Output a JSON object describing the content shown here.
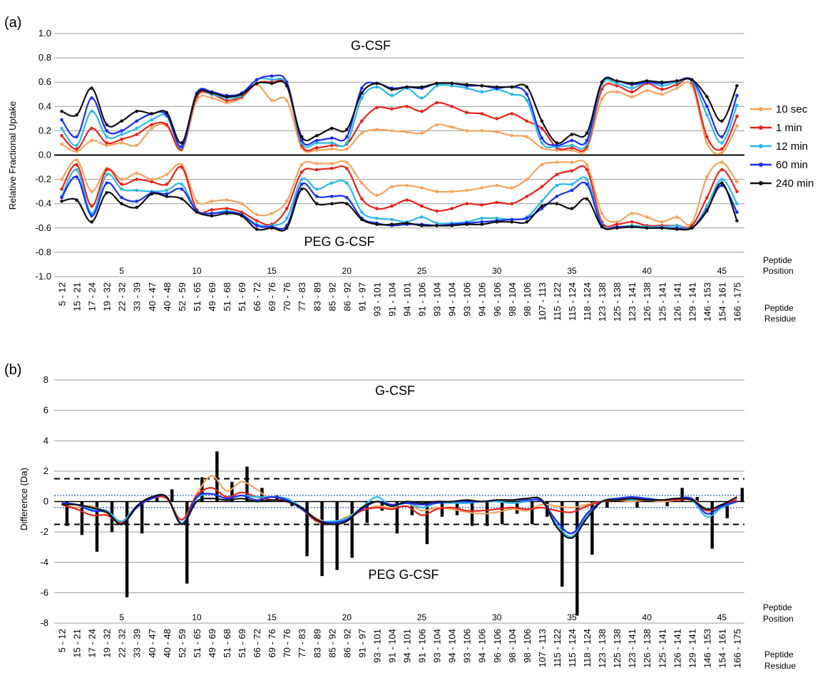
{
  "panel_a_label": "(a)",
  "panel_b_label": "(b)",
  "side_labels": {
    "position": [
      "Peptide",
      "Position"
    ],
    "residue": [
      "Peptide",
      "Residue"
    ]
  },
  "chart_data": [
    {
      "type": "line",
      "panel": "(a)",
      "title_top": "G-CSF",
      "title_bottom": "PEG G-CSF",
      "xlabel": "",
      "ylabel": "Relative Fractional Uptake",
      "ylim": [
        -1.0,
        1.0
      ],
      "yticks": [
        "1.0",
        "0.8",
        "0.6",
        "0.4",
        "0.2",
        "0.0",
        "-0.2",
        "-0.4",
        "-0.6",
        "-0.8",
        "-1.0"
      ],
      "categories": [
        "5 - 12",
        "15 - 21",
        "17 - 24",
        "19 - 32",
        "22 - 32",
        "33 - 39",
        "40 - 47",
        "40 - 48",
        "52 - 59",
        "51 - 65",
        "49 - 69",
        "51 - 68",
        "51 - 69",
        "66 - 72",
        "69 - 76",
        "70 - 76",
        "77 - 83",
        "83 - 89",
        "85 - 92",
        "86 - 92",
        "91 - 97",
        "93 - 101",
        "91 - 104",
        "94 - 101",
        "91 - 106",
        "93 - 104",
        "94 - 104",
        "93 - 106",
        "94 - 106",
        "96 - 106",
        "98 - 104",
        "98 - 106",
        "107 - 113",
        "115 - 122",
        "115 - 124",
        "118 - 124",
        "123 - 138",
        "125 - 138",
        "123 - 141",
        "126 - 138",
        "125 - 141",
        "126 - 141",
        "129 - 141",
        "146 - 153",
        "154 - 161",
        "166 - 175"
      ],
      "position_ticks": [
        "5",
        "10",
        "15",
        "20",
        "25",
        "30",
        "35",
        "40",
        "45"
      ],
      "grid": true,
      "legend": "right",
      "series": [
        {
          "name": "10 sec",
          "color": "#f4a460",
          "top": [
            0.09,
            0.03,
            0.12,
            0.08,
            0.1,
            0.08,
            0.22,
            0.24,
            0.04,
            0.45,
            0.47,
            0.43,
            0.47,
            0.58,
            0.45,
            0.45,
            0.06,
            0.04,
            0.05,
            0.05,
            0.18,
            0.21,
            0.2,
            0.19,
            0.18,
            0.25,
            0.23,
            0.2,
            0.2,
            0.19,
            0.16,
            0.15,
            0.06,
            0.04,
            0.04,
            0.05,
            0.46,
            0.52,
            0.48,
            0.53,
            0.5,
            0.55,
            0.57,
            0.1,
            0.02,
            0.24
          ],
          "bottom": [
            -0.2,
            -0.04,
            -0.3,
            -0.11,
            -0.2,
            -0.15,
            -0.2,
            -0.16,
            -0.08,
            -0.38,
            -0.38,
            -0.37,
            -0.4,
            -0.49,
            -0.48,
            -0.38,
            -0.08,
            -0.07,
            -0.07,
            -0.06,
            -0.23,
            -0.33,
            -0.26,
            -0.25,
            -0.27,
            -0.3,
            -0.3,
            -0.29,
            -0.27,
            -0.25,
            -0.27,
            -0.2,
            -0.08,
            -0.06,
            -0.06,
            -0.08,
            -0.48,
            -0.55,
            -0.48,
            -0.51,
            -0.55,
            -0.51,
            -0.56,
            -0.18,
            -0.06,
            -0.22
          ]
        },
        {
          "name": "1 min",
          "color": "#e8231c",
          "top": [
            0.16,
            0.05,
            0.22,
            0.1,
            0.13,
            0.17,
            0.25,
            0.25,
            0.05,
            0.48,
            0.5,
            0.45,
            0.48,
            0.59,
            0.6,
            0.57,
            0.08,
            0.06,
            0.08,
            0.09,
            0.28,
            0.39,
            0.38,
            0.4,
            0.36,
            0.43,
            0.4,
            0.35,
            0.34,
            0.3,
            0.34,
            0.28,
            0.22,
            0.06,
            0.06,
            0.07,
            0.54,
            0.57,
            0.52,
            0.59,
            0.54,
            0.58,
            0.6,
            0.15,
            0.05,
            0.32
          ],
          "bottom": [
            -0.28,
            -0.08,
            -0.42,
            -0.12,
            -0.24,
            -0.2,
            -0.22,
            -0.24,
            -0.1,
            -0.45,
            -0.45,
            -0.44,
            -0.47,
            -0.54,
            -0.57,
            -0.44,
            -0.14,
            -0.12,
            -0.11,
            -0.11,
            -0.36,
            -0.44,
            -0.42,
            -0.37,
            -0.42,
            -0.46,
            -0.44,
            -0.4,
            -0.41,
            -0.39,
            -0.4,
            -0.34,
            -0.26,
            -0.16,
            -0.13,
            -0.12,
            -0.55,
            -0.57,
            -0.55,
            -0.58,
            -0.58,
            -0.58,
            -0.58,
            -0.35,
            -0.12,
            -0.3
          ]
        },
        {
          "name": "12 min",
          "color": "#2cb8e6",
          "top": [
            0.22,
            0.08,
            0.36,
            0.15,
            0.17,
            0.22,
            0.29,
            0.32,
            0.06,
            0.5,
            0.5,
            0.47,
            0.49,
            0.62,
            0.62,
            0.58,
            0.1,
            0.1,
            0.1,
            0.1,
            0.47,
            0.56,
            0.49,
            0.55,
            0.47,
            0.57,
            0.57,
            0.55,
            0.52,
            0.54,
            0.5,
            0.45,
            0.1,
            0.07,
            0.08,
            0.09,
            0.58,
            0.59,
            0.55,
            0.6,
            0.57,
            0.6,
            0.61,
            0.33,
            0.1,
            0.41
          ],
          "bottom": [
            -0.34,
            -0.12,
            -0.48,
            -0.16,
            -0.28,
            -0.29,
            -0.3,
            -0.29,
            -0.24,
            -0.46,
            -0.48,
            -0.46,
            -0.49,
            -0.57,
            -0.58,
            -0.52,
            -0.2,
            -0.28,
            -0.23,
            -0.23,
            -0.47,
            -0.52,
            -0.53,
            -0.55,
            -0.51,
            -0.56,
            -0.56,
            -0.55,
            -0.52,
            -0.52,
            -0.53,
            -0.51,
            -0.38,
            -0.25,
            -0.24,
            -0.2,
            -0.57,
            -0.59,
            -0.58,
            -0.59,
            -0.59,
            -0.58,
            -0.6,
            -0.42,
            -0.2,
            -0.4
          ]
        },
        {
          "name": "60 min",
          "color": "#1c2ef0",
          "top": [
            0.29,
            0.15,
            0.47,
            0.2,
            0.2,
            0.28,
            0.34,
            0.33,
            0.07,
            0.51,
            0.52,
            0.49,
            0.51,
            0.62,
            0.65,
            0.6,
            0.12,
            0.12,
            0.14,
            0.15,
            0.55,
            0.59,
            0.55,
            0.56,
            0.55,
            0.59,
            0.59,
            0.57,
            0.57,
            0.55,
            0.56,
            0.5,
            0.14,
            0.08,
            0.12,
            0.12,
            0.6,
            0.61,
            0.58,
            0.6,
            0.59,
            0.61,
            0.62,
            0.4,
            0.15,
            0.49
          ],
          "bottom": [
            -0.35,
            -0.18,
            -0.5,
            -0.23,
            -0.35,
            -0.38,
            -0.31,
            -0.32,
            -0.28,
            -0.46,
            -0.48,
            -0.47,
            -0.49,
            -0.58,
            -0.59,
            -0.58,
            -0.24,
            -0.34,
            -0.34,
            -0.35,
            -0.52,
            -0.56,
            -0.58,
            -0.57,
            -0.57,
            -0.58,
            -0.57,
            -0.56,
            -0.55,
            -0.54,
            -0.53,
            -0.52,
            -0.44,
            -0.34,
            -0.29,
            -0.24,
            -0.58,
            -0.59,
            -0.59,
            -0.6,
            -0.6,
            -0.6,
            -0.6,
            -0.45,
            -0.25,
            -0.47
          ]
        },
        {
          "name": "240 min",
          "color": "#111111",
          "top": [
            0.36,
            0.33,
            0.55,
            0.25,
            0.28,
            0.36,
            0.34,
            0.35,
            0.1,
            0.5,
            0.51,
            0.48,
            0.5,
            0.59,
            0.59,
            0.57,
            0.15,
            0.16,
            0.22,
            0.21,
            0.51,
            0.59,
            0.54,
            0.56,
            0.56,
            0.59,
            0.59,
            0.58,
            0.57,
            0.56,
            0.56,
            0.56,
            0.28,
            0.1,
            0.17,
            0.18,
            0.6,
            0.61,
            0.59,
            0.61,
            0.6,
            0.61,
            0.62,
            0.48,
            0.28,
            0.57
          ],
          "bottom": [
            -0.38,
            -0.37,
            -0.55,
            -0.31,
            -0.4,
            -0.43,
            -0.32,
            -0.34,
            -0.36,
            -0.47,
            -0.5,
            -0.48,
            -0.5,
            -0.61,
            -0.6,
            -0.6,
            -0.28,
            -0.4,
            -0.4,
            -0.4,
            -0.53,
            -0.57,
            -0.57,
            -0.56,
            -0.58,
            -0.58,
            -0.58,
            -0.57,
            -0.57,
            -0.55,
            -0.55,
            -0.55,
            -0.42,
            -0.4,
            -0.44,
            -0.36,
            -0.59,
            -0.6,
            -0.59,
            -0.6,
            -0.6,
            -0.61,
            -0.6,
            -0.46,
            -0.23,
            -0.54
          ]
        }
      ]
    },
    {
      "type": "line",
      "panel": "(b)",
      "title_top": "G-CSF",
      "title_bottom": "PEG G-CSF",
      "xlabel": "",
      "ylabel": "Difference (Da)",
      "ylim": [
        -8,
        8
      ],
      "yticks": [
        "8",
        "6",
        "4",
        "2",
        "0",
        "-2",
        "-4",
        "-6",
        "-8"
      ],
      "categories": [
        "5 - 12",
        "15 - 21",
        "17 - 24",
        "19 - 32",
        "22 - 32",
        "33 - 39",
        "40 - 47",
        "40 - 48",
        "52 - 59",
        "51 - 65",
        "49 - 69",
        "51 - 68",
        "51 - 69",
        "66 - 72",
        "69 - 76",
        "70 - 76",
        "77 - 83",
        "83 - 89",
        "85 - 92",
        "86 - 92",
        "91 - 97",
        "93 - 101",
        "91 - 104",
        "94 - 101",
        "91 - 106",
        "93 - 104",
        "94 - 104",
        "93 - 106",
        "94 - 106",
        "96 - 106",
        "98 - 104",
        "98 - 106",
        "107 - 113",
        "115 - 122",
        "115 - 124",
        "118 - 124",
        "123 - 138",
        "125 - 138",
        "123 - 141",
        "126 - 138",
        "125 - 141",
        "126 - 141",
        "129 - 141",
        "146 - 153",
        "154 - 161",
        "166 - 175"
      ],
      "position_ticks": [
        "5",
        "10",
        "15",
        "20",
        "25",
        "30",
        "35",
        "40",
        "45"
      ],
      "threshold_dashed": [
        1.5,
        -1.5
      ],
      "threshold_dotted": [
        0.4,
        -0.4
      ],
      "bars": [
        -1.6,
        -2.2,
        -3.3,
        -2.0,
        -6.3,
        -2.1,
        0.4,
        0.8,
        -5.4,
        1.6,
        3.3,
        1.3,
        2.3,
        0.9,
        0.4,
        -0.3,
        -3.6,
        -4.9,
        -4.5,
        -3.7,
        -1.4,
        -0.6,
        -2.1,
        -0.9,
        -2.8,
        -1.0,
        -0.9,
        -1.6,
        -1.6,
        -1.5,
        -0.8,
        -1.5,
        -1.0,
        -5.6,
        -7.5,
        -3.5,
        -0.4,
        0.2,
        -0.4,
        0.2,
        -0.3,
        0.9,
        0.3,
        -3.1,
        -1.1,
        0.9
      ],
      "series": [
        {
          "name": "10 sec",
          "color": "#f4a460",
          "values": [
            -0.2,
            -0.4,
            -0.3,
            -0.8,
            -1.3,
            -0.3,
            0.2,
            0.3,
            -1.2,
            0.5,
            1.7,
            0.7,
            1.3,
            0.8,
            0.1,
            0.1,
            -0.5,
            -1.1,
            -1.4,
            -1.0,
            -0.6,
            -0.3,
            -0.4,
            -0.1,
            -0.6,
            -0.4,
            -0.5,
            -0.7,
            -0.8,
            -0.7,
            -0.5,
            -0.6,
            -0.2,
            -0.3,
            -0.4,
            -0.2,
            0.0,
            0.1,
            0.0,
            0.1,
            0.0,
            0.1,
            0.2,
            -0.5,
            -0.3,
            0.2
          ]
        },
        {
          "name": "1 min",
          "color": "#e8231c",
          "values": [
            -0.2,
            -0.5,
            -0.9,
            -0.9,
            -1.4,
            -0.4,
            0.2,
            0.2,
            -1.2,
            0.4,
            0.9,
            0.3,
            0.6,
            0.3,
            0.1,
            0.1,
            -0.5,
            -1.3,
            -1.4,
            -1.2,
            -0.6,
            -0.4,
            -0.5,
            -0.3,
            -0.9,
            -0.5,
            -0.4,
            -0.6,
            -0.6,
            -0.5,
            -0.4,
            -0.5,
            -0.4,
            -0.6,
            -0.7,
            -0.3,
            0.0,
            0.1,
            0.1,
            0.1,
            0.1,
            0.1,
            0.1,
            -0.6,
            -0.2,
            0.1
          ]
        },
        {
          "name": "12 min",
          "color": "#2cb8e6",
          "values": [
            -0.1,
            -0.2,
            -0.5,
            -0.6,
            -1.3,
            -0.3,
            0.3,
            0.3,
            -1.4,
            0.2,
            0.5,
            0.2,
            0.4,
            0.3,
            0.3,
            0.2,
            -0.4,
            -1.2,
            -1.3,
            -1.1,
            -0.4,
            0.3,
            -0.3,
            -0.1,
            -0.4,
            -0.1,
            -0.1,
            -0.1,
            0.0,
            0.0,
            -0.1,
            0.0,
            0.1,
            -1.5,
            -2.3,
            -0.9,
            0.0,
            0.2,
            0.1,
            0.2,
            0.1,
            0.2,
            0.1,
            -1.0,
            -0.4,
            0.0
          ]
        },
        {
          "name": "60 min",
          "color": "#1c2ef0",
          "values": [
            -0.1,
            -0.2,
            -0.6,
            -0.7,
            -1.5,
            -0.4,
            0.2,
            0.3,
            -1.5,
            0.3,
            0.5,
            0.2,
            0.4,
            0.1,
            0.3,
            0.1,
            -0.5,
            -1.2,
            -1.4,
            -1.2,
            -0.5,
            0.0,
            -0.2,
            -0.1,
            -0.2,
            -0.1,
            0.0,
            0.0,
            0.0,
            0.1,
            0.1,
            0.1,
            0.0,
            -1.3,
            -2.1,
            -0.8,
            0.0,
            0.2,
            0.3,
            0.2,
            0.1,
            0.2,
            0.2,
            -0.8,
            -0.3,
            0.0
          ]
        },
        {
          "name": "240 min",
          "color": "#111111",
          "values": [
            -0.2,
            -0.2,
            -0.4,
            -0.7,
            -1.5,
            -0.3,
            0.3,
            0.3,
            -1.5,
            0.0,
            0.2,
            0.1,
            0.2,
            0.0,
            0.1,
            0.0,
            -0.4,
            -1.2,
            -1.5,
            -1.3,
            -0.4,
            0.0,
            -0.3,
            0.0,
            -0.1,
            0.0,
            0.0,
            0.1,
            0.0,
            0.1,
            0.1,
            0.2,
            0.1,
            -1.7,
            -2.4,
            -1.1,
            0.0,
            0.1,
            0.2,
            0.1,
            0.1,
            0.2,
            0.1,
            -0.5,
            -0.2,
            0.3
          ]
        }
      ]
    }
  ]
}
